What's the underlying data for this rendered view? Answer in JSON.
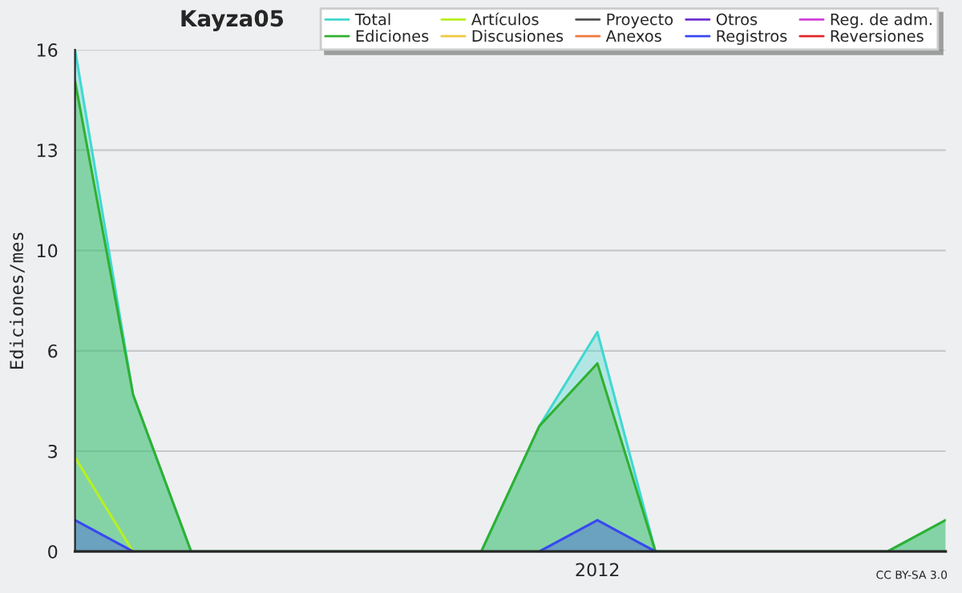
{
  "chart_data": {
    "type": "area",
    "title": "Kayza05",
    "ylabel": "Ediciones/mes",
    "categories": [
      null,
      null,
      null,
      null,
      null,
      null,
      null,
      null,
      null,
      "2012",
      null,
      null,
      null,
      null,
      null,
      null
    ],
    "series": [
      {
        "name": "Total",
        "color": "#40d8d0",
        "values": [
          16,
          5,
          0,
          0,
          0,
          0,
          0,
          0,
          4,
          7,
          0,
          0,
          0,
          0,
          0,
          1
        ]
      },
      {
        "name": "Ediciones",
        "color": "#30b030",
        "values": [
          15,
          5,
          0,
          0,
          0,
          0,
          0,
          0,
          4,
          6,
          0,
          0,
          0,
          0,
          0,
          1
        ]
      },
      {
        "name": "Artículos",
        "color": "#b8f020",
        "type": "line",
        "values": [
          3,
          0,
          null,
          null,
          null,
          null,
          null,
          null,
          null,
          null,
          null,
          null,
          null,
          null,
          null,
          null
        ]
      },
      {
        "name": "Discusiones",
        "color": "#f0c840",
        "type": "line",
        "values": [
          null,
          null,
          null,
          null,
          null,
          null,
          null,
          null,
          null,
          null,
          null,
          null,
          null,
          null,
          null,
          null
        ]
      },
      {
        "name": "Proyecto",
        "color": "#505050",
        "type": "line",
        "values": [
          null,
          null,
          null,
          null,
          null,
          null,
          null,
          null,
          null,
          null,
          null,
          null,
          null,
          null,
          null,
          null
        ]
      },
      {
        "name": "Anexos",
        "color": "#f07840",
        "type": "line",
        "values": [
          null,
          null,
          null,
          null,
          null,
          null,
          null,
          null,
          null,
          null,
          null,
          null,
          null,
          null,
          null,
          null
        ]
      },
      {
        "name": "Otros",
        "color": "#7030d0",
        "type": "line",
        "values": [
          null,
          null,
          null,
          null,
          null,
          null,
          null,
          null,
          null,
          null,
          null,
          null,
          null,
          null,
          null,
          null
        ]
      },
      {
        "name": "Registros",
        "color": "#3848f0",
        "values": [
          1,
          0,
          null,
          null,
          null,
          null,
          null,
          null,
          0,
          1,
          0,
          null,
          null,
          null,
          null,
          null
        ]
      },
      {
        "name": "Reg. de adm.",
        "color": "#d040d8",
        "type": "line",
        "values": [
          null,
          null,
          null,
          null,
          null,
          null,
          null,
          null,
          null,
          null,
          null,
          null,
          null,
          null,
          null,
          null
        ]
      },
      {
        "name": "Reversiones",
        "color": "#e02828",
        "type": "line",
        "values": [
          null,
          null,
          null,
          null,
          null,
          null,
          null,
          null,
          null,
          null,
          null,
          null,
          null,
          null,
          null,
          null
        ]
      }
    ],
    "ylim": [
      0,
      16
    ],
    "yticks": [
      {
        "value": 0,
        "label": "0"
      },
      {
        "value": 3.2,
        "label": "3"
      },
      {
        "value": 6.4,
        "label": "6"
      },
      {
        "value": 9.6,
        "label": "10"
      },
      {
        "value": 12.8,
        "label": "13"
      },
      {
        "value": 16,
        "label": "16"
      }
    ],
    "grid": "y",
    "legend": "top right",
    "annotations": [
      "CC BY-SA 3.0"
    ]
  }
}
